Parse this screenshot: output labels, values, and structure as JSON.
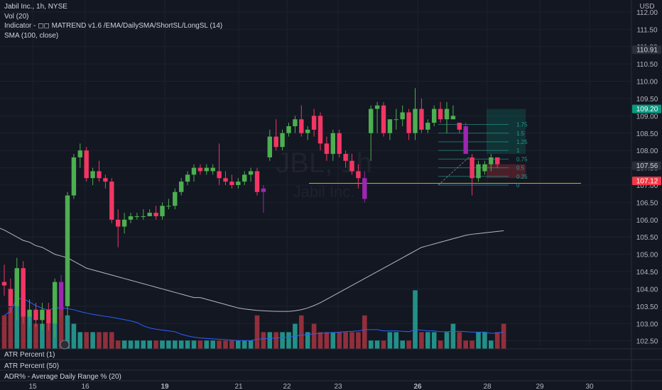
{
  "legend": {
    "title": "Jabil Inc., 1h, NYSE",
    "vol": "Vol (20)",
    "indicator": "Indicator - ◻◻ MATREND v1.6 /EMA/DailySMA/ShortSL/LongSL (14)",
    "sma": "SMA (100, close)"
  },
  "watermark": {
    "symbol": "JBL, 1h",
    "name": "Jabil Inc."
  },
  "currency": "USD",
  "panels": [
    "ATR Percent (1)",
    "ATR Percent (50)",
    "ADR% - Average Daily Range % (20)"
  ],
  "colors": {
    "up": "#4caf50",
    "down": "#f23664",
    "special": "#9c27b0",
    "sma": "#d1d4dc",
    "level": "#c8b400",
    "vol_up": "#26a69a",
    "vol_down": "#a8343f",
    "vol_avg": "#2962ff"
  },
  "price_badges": [
    {
      "value": "110.91",
      "bg": "#2a2e39",
      "fg": "#d1d4dc"
    },
    {
      "value": "109.20",
      "bg": "#089981",
      "fg": "#ffffff"
    },
    {
      "value": "107.56",
      "bg": "#2a2e39",
      "fg": "#d1d4dc"
    },
    {
      "value": "107.12",
      "bg": "#f23645",
      "fg": "#ffffff"
    }
  ],
  "fib_labels": [
    "1.75",
    "1.5",
    "1.25",
    "1",
    "0.75",
    "0.5",
    "0.25",
    "0"
  ],
  "chart_data": {
    "type": "candlestick",
    "title": "Jabil Inc., 1h, NYSE",
    "y_ticks": [
      "112.00",
      "111.50",
      "111.00",
      "110.50",
      "110.00",
      "109.50",
      "109.00",
      "108.50",
      "108.00",
      "107.50",
      "107.00",
      "106.50",
      "106.00",
      "105.50",
      "105.00",
      "104.50",
      "104.00",
      "103.50",
      "103.00",
      "102.50"
    ],
    "x_ticks": [
      "15",
      "16",
      "19",
      "21",
      "22",
      "23",
      "26",
      "28",
      "29",
      "30"
    ],
    "ylim": [
      102.35,
      112.1
    ],
    "grid": true,
    "candles": [
      {
        "o": 104.2,
        "h": 104.7,
        "l": 103.8,
        "c": 104.1,
        "d": "down"
      },
      {
        "o": 104.0,
        "h": 104.3,
        "l": 103.3,
        "c": 103.5,
        "d": "down"
      },
      {
        "o": 103.5,
        "h": 104.9,
        "l": 103.1,
        "c": 104.6,
        "d": "up"
      },
      {
        "o": 104.6,
        "h": 104.8,
        "l": 103.0,
        "c": 103.2,
        "d": "down"
      },
      {
        "o": 103.2,
        "h": 103.7,
        "l": 102.9,
        "c": 103.4,
        "d": "up"
      },
      {
        "o": 103.4,
        "h": 103.6,
        "l": 102.9,
        "c": 103.1,
        "d": "down"
      },
      {
        "o": 103.1,
        "h": 103.6,
        "l": 102.8,
        "c": 103.4,
        "d": "up"
      },
      {
        "o": 103.4,
        "h": 103.6,
        "l": 102.8,
        "c": 103.0,
        "d": "down"
      },
      {
        "o": 103.0,
        "h": 104.3,
        "l": 102.6,
        "c": 104.2,
        "d": "up"
      },
      {
        "o": 104.2,
        "h": 104.4,
        "l": 103.2,
        "c": 103.4,
        "d": "special"
      },
      {
        "o": 103.5,
        "h": 106.8,
        "l": 103.2,
        "c": 106.7,
        "d": "up"
      },
      {
        "o": 106.7,
        "h": 107.9,
        "l": 106.6,
        "c": 107.8,
        "d": "up"
      },
      {
        "o": 107.8,
        "h": 108.2,
        "l": 107.5,
        "c": 108.0,
        "d": "up"
      },
      {
        "o": 108.0,
        "h": 108.1,
        "l": 107.1,
        "c": 107.2,
        "d": "down"
      },
      {
        "o": 107.2,
        "h": 107.5,
        "l": 107.0,
        "c": 107.4,
        "d": "up"
      },
      {
        "o": 107.4,
        "h": 107.7,
        "l": 107.1,
        "c": 107.2,
        "d": "down"
      },
      {
        "o": 107.2,
        "h": 107.3,
        "l": 106.9,
        "c": 107.1,
        "d": "down"
      },
      {
        "o": 107.1,
        "h": 107.2,
        "l": 105.9,
        "c": 106.0,
        "d": "down"
      },
      {
        "o": 106.0,
        "h": 106.3,
        "l": 105.2,
        "c": 105.8,
        "d": "down"
      },
      {
        "o": 105.8,
        "h": 106.2,
        "l": 105.6,
        "c": 106.0,
        "d": "up"
      },
      {
        "o": 106.0,
        "h": 106.2,
        "l": 105.9,
        "c": 106.1,
        "d": "up"
      },
      {
        "o": 106.1,
        "h": 106.2,
        "l": 106.0,
        "c": 106.1,
        "d": "up"
      },
      {
        "o": 106.1,
        "h": 106.3,
        "l": 106.0,
        "c": 106.1,
        "d": "up"
      },
      {
        "o": 106.1,
        "h": 106.3,
        "l": 106.1,
        "c": 106.2,
        "d": "up"
      },
      {
        "o": 106.2,
        "h": 106.4,
        "l": 106.0,
        "c": 106.1,
        "d": "down"
      },
      {
        "o": 106.1,
        "h": 106.5,
        "l": 106.0,
        "c": 106.4,
        "d": "up"
      },
      {
        "o": 106.4,
        "h": 106.6,
        "l": 106.3,
        "c": 106.4,
        "d": "up"
      },
      {
        "o": 106.4,
        "h": 106.9,
        "l": 106.3,
        "c": 106.8,
        "d": "up"
      },
      {
        "o": 106.8,
        "h": 107.2,
        "l": 106.7,
        "c": 107.1,
        "d": "up"
      },
      {
        "o": 107.1,
        "h": 107.4,
        "l": 107.0,
        "c": 107.3,
        "d": "up"
      },
      {
        "o": 107.3,
        "h": 107.6,
        "l": 107.1,
        "c": 107.5,
        "d": "up"
      },
      {
        "o": 107.5,
        "h": 107.6,
        "l": 107.3,
        "c": 107.4,
        "d": "down"
      },
      {
        "o": 107.4,
        "h": 107.6,
        "l": 107.3,
        "c": 107.5,
        "d": "up"
      },
      {
        "o": 107.5,
        "h": 107.6,
        "l": 107.3,
        "c": 107.4,
        "d": "up"
      },
      {
        "o": 107.4,
        "h": 108.2,
        "l": 107.0,
        "c": 107.2,
        "d": "down"
      },
      {
        "o": 107.2,
        "h": 107.4,
        "l": 107.0,
        "c": 107.1,
        "d": "down"
      },
      {
        "o": 107.1,
        "h": 107.3,
        "l": 106.9,
        "c": 107.0,
        "d": "down"
      },
      {
        "o": 107.0,
        "h": 107.2,
        "l": 106.9,
        "c": 107.1,
        "d": "up"
      },
      {
        "o": 107.1,
        "h": 107.4,
        "l": 107.0,
        "c": 107.3,
        "d": "up"
      },
      {
        "o": 107.3,
        "h": 107.5,
        "l": 107.1,
        "c": 107.4,
        "d": "up"
      },
      {
        "o": 107.4,
        "h": 107.5,
        "l": 106.7,
        "c": 106.8,
        "d": "down"
      },
      {
        "o": 106.8,
        "h": 107.0,
        "l": 106.2,
        "c": 106.9,
        "d": "special"
      },
      {
        "o": 107.8,
        "h": 108.6,
        "l": 107.7,
        "c": 108.4,
        "d": "up"
      },
      {
        "o": 108.4,
        "h": 108.9,
        "l": 108.0,
        "c": 108.1,
        "d": "down"
      },
      {
        "o": 108.1,
        "h": 108.6,
        "l": 108.0,
        "c": 108.5,
        "d": "up"
      },
      {
        "o": 108.5,
        "h": 108.8,
        "l": 108.4,
        "c": 108.7,
        "d": "up"
      },
      {
        "o": 108.7,
        "h": 109.0,
        "l": 108.5,
        "c": 108.9,
        "d": "up"
      },
      {
        "o": 108.9,
        "h": 109.3,
        "l": 108.4,
        "c": 108.5,
        "d": "down"
      },
      {
        "o": 108.5,
        "h": 108.7,
        "l": 108.3,
        "c": 108.6,
        "d": "up"
      },
      {
        "o": 108.6,
        "h": 109.2,
        "l": 108.4,
        "c": 109.0,
        "d": "down"
      },
      {
        "o": 109.0,
        "h": 109.1,
        "l": 108.0,
        "c": 108.2,
        "d": "down"
      },
      {
        "o": 108.2,
        "h": 108.4,
        "l": 107.7,
        "c": 107.9,
        "d": "down"
      },
      {
        "o": 107.9,
        "h": 108.6,
        "l": 107.7,
        "c": 108.5,
        "d": "up"
      },
      {
        "o": 108.5,
        "h": 108.6,
        "l": 107.8,
        "c": 107.9,
        "d": "down"
      },
      {
        "o": 107.9,
        "h": 108.0,
        "l": 107.5,
        "c": 107.7,
        "d": "down"
      },
      {
        "o": 107.7,
        "h": 107.9,
        "l": 107.3,
        "c": 107.4,
        "d": "down"
      },
      {
        "o": 107.4,
        "h": 107.6,
        "l": 106.9,
        "c": 107.2,
        "d": "down"
      },
      {
        "o": 107.2,
        "h": 107.4,
        "l": 106.5,
        "c": 106.6,
        "d": "special"
      },
      {
        "o": 108.5,
        "h": 109.3,
        "l": 107.7,
        "c": 109.2,
        "d": "up"
      },
      {
        "o": 109.2,
        "h": 109.4,
        "l": 108.5,
        "c": 109.3,
        "d": "up"
      },
      {
        "o": 109.3,
        "h": 109.4,
        "l": 108.4,
        "c": 108.5,
        "d": "down"
      },
      {
        "o": 108.5,
        "h": 108.9,
        "l": 108.3,
        "c": 108.9,
        "d": "up"
      },
      {
        "o": 108.9,
        "h": 109.2,
        "l": 108.6,
        "c": 108.9,
        "d": "up"
      },
      {
        "o": 108.9,
        "h": 109.3,
        "l": 108.7,
        "c": 109.1,
        "d": "up"
      },
      {
        "o": 109.1,
        "h": 109.2,
        "l": 108.3,
        "c": 108.5,
        "d": "down"
      },
      {
        "o": 108.5,
        "h": 109.8,
        "l": 108.3,
        "c": 109.2,
        "d": "up"
      },
      {
        "o": 109.2,
        "h": 109.5,
        "l": 108.5,
        "c": 108.6,
        "d": "down"
      },
      {
        "o": 108.6,
        "h": 108.9,
        "l": 108.5,
        "c": 108.8,
        "d": "up"
      },
      {
        "o": 108.8,
        "h": 109.3,
        "l": 108.7,
        "c": 109.2,
        "d": "up"
      },
      {
        "o": 109.2,
        "h": 109.4,
        "l": 108.8,
        "c": 108.9,
        "d": "down"
      },
      {
        "o": 108.9,
        "h": 109.4,
        "l": 108.5,
        "c": 109.2,
        "d": "up"
      },
      {
        "o": 109.0,
        "h": 109.3,
        "l": 108.9,
        "c": 108.9,
        "d": "up"
      },
      {
        "o": 108.8,
        "h": 108.8,
        "l": 108.5,
        "c": 108.6,
        "d": "down"
      },
      {
        "o": 108.7,
        "h": 108.8,
        "l": 107.9,
        "c": 107.9,
        "d": "special"
      },
      {
        "o": 107.8,
        "h": 107.9,
        "l": 106.7,
        "c": 107.2,
        "d": "down"
      },
      {
        "o": 107.2,
        "h": 107.7,
        "l": 107.1,
        "c": 107.6,
        "d": "up"
      },
      {
        "o": 107.4,
        "h": 107.7,
        "l": 107.3,
        "c": 107.6,
        "d": "up"
      },
      {
        "o": 107.6,
        "h": 107.9,
        "l": 107.4,
        "c": 107.8,
        "d": "up"
      },
      {
        "o": 107.8,
        "h": 107.8,
        "l": 107.5,
        "c": 107.6,
        "d": "down"
      }
    ],
    "volume": [
      4,
      5,
      9,
      6,
      4,
      3,
      3,
      3,
      7,
      5,
      4,
      3,
      2,
      2,
      2,
      2,
      2,
      2,
      1,
      1,
      1,
      1,
      1,
      1,
      1,
      1,
      1,
      1,
      1,
      1,
      1,
      1,
      1,
      1,
      1,
      1,
      1,
      1,
      1,
      1,
      4,
      2,
      2,
      2,
      2,
      2,
      3,
      4,
      2,
      3,
      2,
      2,
      2,
      2,
      2,
      2,
      2,
      4,
      1,
      1,
      1,
      2,
      2,
      1,
      1,
      7,
      2,
      2,
      2,
      1,
      2,
      3,
      2,
      1,
      1,
      2,
      2,
      1,
      2,
      3
    ],
    "sma_y": [
      105.7,
      105.6,
      105.5,
      105.4,
      105.35,
      105.25,
      105.2,
      105.1,
      105.0,
      104.95,
      104.9,
      104.8,
      104.7,
      104.6,
      104.55,
      104.5,
      104.45,
      104.4,
      104.35,
      104.3,
      104.25,
      104.2,
      104.15,
      104.1,
      104.05,
      104.0,
      103.95,
      103.9,
      103.85,
      103.8,
      103.75,
      103.75,
      103.7,
      103.65,
      103.6,
      103.55,
      103.5,
      103.45,
      103.42,
      103.4,
      103.38,
      103.37,
      103.36,
      103.35,
      103.35,
      103.35,
      103.37,
      103.4,
      103.45,
      103.52,
      103.6,
      103.7,
      103.8,
      103.9,
      104.0,
      104.1,
      104.2,
      104.3,
      104.4,
      104.5,
      104.6,
      104.7,
      104.8,
      104.9,
      105.0,
      105.1,
      105.2,
      105.25,
      105.3,
      105.35,
      105.4,
      105.45,
      105.5,
      105.55,
      105.58,
      105.6,
      105.62,
      105.64,
      105.66,
      105.68
    ],
    "horizontal_line": 107.05,
    "fib_levels": [
      108.75,
      108.5,
      108.25,
      108.0,
      107.75,
      107.5,
      107.25,
      107.0
    ],
    "target_box": {
      "from": 107.9,
      "to": 109.2
    },
    "stop_box": {
      "from": 107.2,
      "to": 107.6
    }
  }
}
